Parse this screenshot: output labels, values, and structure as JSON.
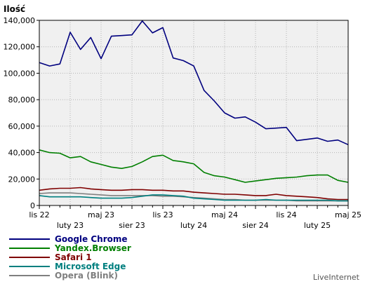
{
  "chart_data": {
    "type": "line",
    "ylabel": "Ilość",
    "ylim": [
      0,
      140000
    ],
    "yticks": [
      0,
      20000,
      40000,
      60000,
      80000,
      100000,
      120000,
      140000
    ],
    "ytick_labels": [
      "0",
      "20,000",
      "40,000",
      "60,000",
      "80,000",
      "100,000",
      "120,000",
      "140,000"
    ],
    "xticks_upper": [
      "lis 22",
      "maj 23",
      "lis 23",
      "maj 24",
      "lis 24",
      "maj 25"
    ],
    "xticks_lower": [
      "luty 23",
      "sier 23",
      "luty 24",
      "sier 24",
      "luty 25"
    ],
    "grid": true,
    "legend_position": "bottom-left",
    "credit": "LiveInternet",
    "series": [
      {
        "name": "Google Chrome",
        "color": "#00007f",
        "values": [
          108000,
          105500,
          107000,
          131000,
          118000,
          127000,
          111000,
          128000,
          128500,
          129000,
          139500,
          130500,
          134500,
          111500,
          109500,
          105500,
          87000,
          79000,
          70000,
          66000,
          67000,
          63000,
          58000,
          58500,
          59000,
          49000,
          50000,
          51000,
          48500,
          49500,
          46000
        ]
      },
      {
        "name": "Yandex.Browser",
        "color": "#007f00",
        "values": [
          42000,
          40000,
          39500,
          36000,
          37000,
          33000,
          31000,
          29000,
          28000,
          29500,
          33000,
          37000,
          38000,
          34000,
          33000,
          31500,
          25000,
          22500,
          21500,
          19500,
          17500,
          18500,
          19500,
          20500,
          21000,
          21500,
          22500,
          23000,
          23000,
          19000,
          17500
        ]
      },
      {
        "name": "Safari 1",
        "color": "#7f0000",
        "values": [
          11500,
          12500,
          13000,
          13000,
          13500,
          12500,
          12000,
          11500,
          11500,
          12000,
          12000,
          11500,
          11500,
          11000,
          11000,
          10000,
          9500,
          9000,
          8500,
          8500,
          8000,
          7500,
          7500,
          8500,
          7500,
          7000,
          6500,
          6000,
          5000,
          4500,
          4500
        ]
      },
      {
        "name": "Microsoft Edge",
        "color": "#007f7f",
        "values": [
          7500,
          6500,
          6500,
          6500,
          6500,
          6000,
          5500,
          5500,
          5500,
          6000,
          7000,
          8000,
          8000,
          7500,
          7000,
          5500,
          5000,
          4500,
          4000,
          4000,
          4000,
          4000,
          4500,
          4000,
          4000,
          4000,
          4000,
          4000,
          4000,
          3500,
          3500
        ]
      },
      {
        "name": "Opera (Blink)",
        "color": "#7f7f7f",
        "values": [
          9000,
          9500,
          9500,
          9500,
          9000,
          8500,
          8000,
          7500,
          7500,
          7500,
          7500,
          7500,
          7000,
          7000,
          6500,
          6000,
          5500,
          5000,
          4500,
          4500,
          4000,
          4000,
          4000,
          4000,
          4000,
          3500,
          3500,
          3500,
          3500,
          3500,
          3500
        ]
      }
    ]
  }
}
